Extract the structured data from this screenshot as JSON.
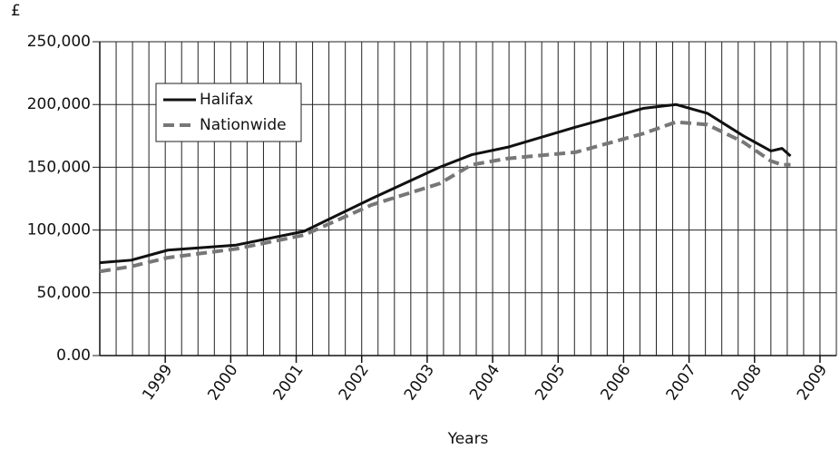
{
  "chart_data": {
    "type": "line",
    "y_label": "£",
    "x_label": "Years",
    "x": [
      1998.0,
      1998.48,
      1999.04,
      2000.08,
      2001.12,
      2002.15,
      2003.19,
      2003.68,
      2004.23,
      2005.27,
      2006.31,
      2006.8,
      2007.28,
      2007.83,
      2008.25,
      2008.42,
      2008.55
    ],
    "series": [
      {
        "name": "Halifax",
        "color": "#111111",
        "dash": false,
        "values": [
          74000,
          76000,
          84000,
          88000,
          99000,
          125000,
          150000,
          160000,
          166000,
          182000,
          197000,
          200000,
          193000,
          175000,
          163000,
          165000,
          159000
        ]
      },
      {
        "name": "Nationwide",
        "color": "#777777",
        "dash": true,
        "values": [
          67000,
          71000,
          78000,
          85000,
          96000,
          120000,
          137000,
          152000,
          157000,
          162000,
          177000,
          186000,
          184000,
          170000,
          155000,
          152000,
          152000
        ]
      }
    ],
    "xlim": [
      1998,
      2009.25
    ],
    "xticks": [
      1999,
      2000,
      2001,
      2002,
      2003,
      2004,
      2005,
      2006,
      2007,
      2008,
      2009
    ],
    "ylim": [
      0,
      250000
    ],
    "yticks": [
      {
        "value": 0,
        "label": "0.00"
      },
      {
        "value": 50000,
        "label": "50,000"
      },
      {
        "value": 100000,
        "label": "100,000"
      },
      {
        "value": 150000,
        "label": "150,000"
      },
      {
        "value": 200000,
        "label": "200,000"
      },
      {
        "value": 250000,
        "label": "250,000"
      }
    ],
    "grid": true,
    "legend": "upper-left"
  }
}
